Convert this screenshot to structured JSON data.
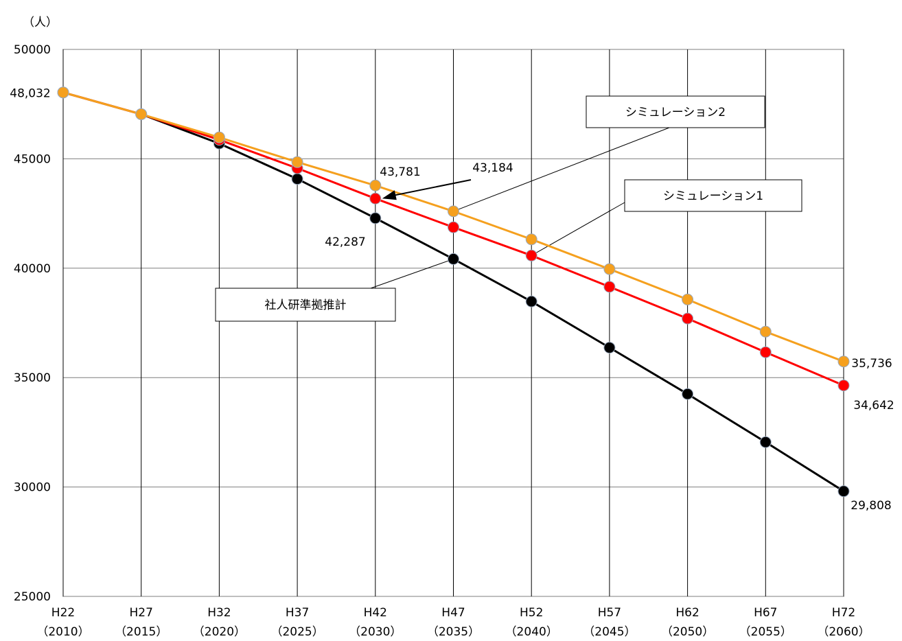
{
  "chart_data": {
    "type": "line",
    "unit_label": "（人）",
    "categories": [
      {
        "era": "H22",
        "year": "（2010）"
      },
      {
        "era": "H27",
        "year": "（2015）"
      },
      {
        "era": "H32",
        "year": "（2020）"
      },
      {
        "era": "H37",
        "year": "（2025）"
      },
      {
        "era": "H42",
        "year": "（2030）"
      },
      {
        "era": "H47",
        "year": "（2035）"
      },
      {
        "era": "H52",
        "year": "（2040）"
      },
      {
        "era": "H57",
        "year": "（2045）"
      },
      {
        "era": "H62",
        "year": "（2050）"
      },
      {
        "era": "H67",
        "year": "（2055）"
      },
      {
        "era": "H72",
        "year": "（2060）"
      }
    ],
    "ylim": [
      25000,
      50000
    ],
    "yticks": [
      "25000",
      "30000",
      "35000",
      "40000",
      "45000",
      "50000"
    ],
    "grid": true,
    "series": [
      {
        "name": "社人研準拠推計",
        "color": "#000000",
        "values": [
          48032,
          47040,
          45700,
          44080,
          42287,
          40420,
          38480,
          36370,
          34250,
          32050,
          29808
        ]
      },
      {
        "name": "シミュレーション1",
        "color": "#ff0000",
        "values": [
          48032,
          47040,
          45870,
          44570,
          43184,
          41870,
          40580,
          39150,
          37700,
          36160,
          34642
        ]
      },
      {
        "name": "シミュレーション2",
        "color": "#f5a01e",
        "values": [
          48032,
          47040,
          45980,
          44850,
          43781,
          42600,
          41320,
          39960,
          38570,
          37100,
          35736
        ]
      }
    ],
    "data_labels": {
      "start": "48,032",
      "s0_2030": "42,287",
      "s1_2030": "43,184",
      "s2_2030": "43,781",
      "s0_end": "29,808",
      "s1_end": "34,642",
      "s2_end": "35,736"
    }
  }
}
